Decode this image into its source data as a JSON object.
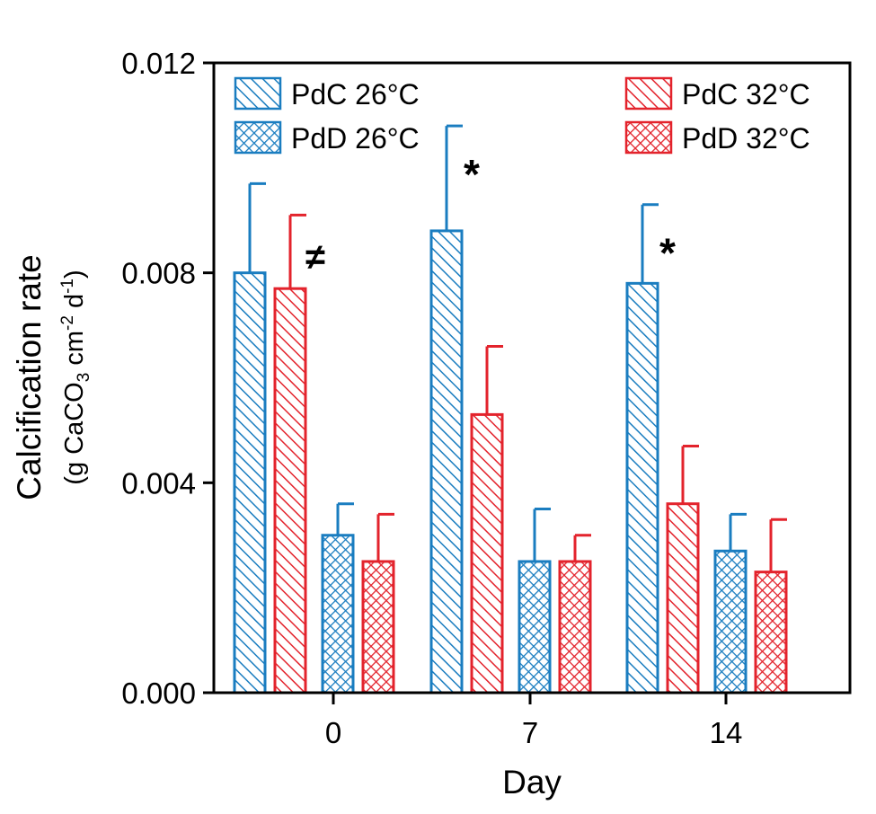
{
  "chart_data": {
    "type": "bar",
    "title": "",
    "xlabel": "Day",
    "ylabel": "Calcification rate",
    "ylabel_units": {
      "prefix": "(g CaCO",
      "sub1": "3",
      "mid": " cm",
      "sup1": "-2",
      "mid2": " d",
      "sup2": "-1",
      "suffix": ")"
    },
    "ylim": [
      0,
      0.012
    ],
    "yticks": [
      "0.000",
      "0.004",
      "0.008",
      "0.012"
    ],
    "ytick_values": [
      0,
      0.004,
      0.008,
      0.012
    ],
    "categories": [
      "0",
      "7",
      "14"
    ],
    "grid": false,
    "legend_position": "top",
    "series": [
      {
        "name": "PdC 26°C",
        "color": "#1a7dc0",
        "pattern": "diagonal",
        "values": [
          0.008,
          0.0088,
          0.0078
        ],
        "errors": [
          0.0017,
          0.002,
          0.0015
        ]
      },
      {
        "name": "PdC 32°C",
        "color": "#e3232c",
        "pattern": "diagonal",
        "values": [
          0.0077,
          0.0053,
          0.0036
        ],
        "errors": [
          0.0014,
          0.0013,
          0.0011
        ]
      },
      {
        "name": "PdD 26°C",
        "color": "#1a7dc0",
        "pattern": "crosshatch",
        "values": [
          0.003,
          0.0025,
          0.0027
        ],
        "errors": [
          0.0006,
          0.001,
          0.0007
        ]
      },
      {
        "name": "PdD 32°C",
        "color": "#e3232c",
        "pattern": "crosshatch",
        "values": [
          0.0025,
          0.0025,
          0.0023
        ],
        "errors": [
          0.0009,
          0.0005,
          0.001
        ]
      }
    ],
    "annotations": [
      {
        "text": "≠",
        "category": "0",
        "series": "PdC 32°C"
      },
      {
        "text": "*",
        "category": "7",
        "series": "PdC 26°C"
      },
      {
        "text": "*",
        "category": "14",
        "series": "PdC 26°C"
      }
    ]
  }
}
